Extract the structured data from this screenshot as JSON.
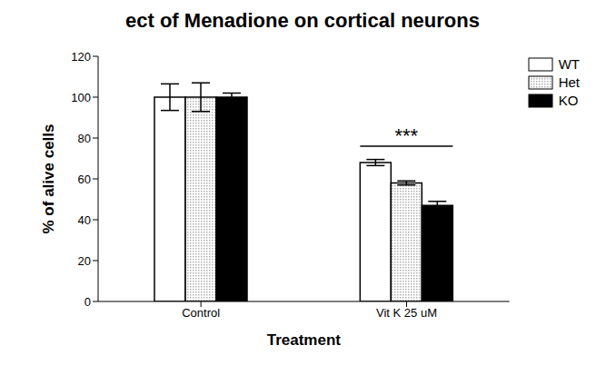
{
  "chart_data": {
    "type": "bar",
    "title": "ect of Menadione on cortical neurons",
    "x_label": "Treatment",
    "y_label": "% of alive cells",
    "categories": [
      "Control",
      "Vit K 25 uM"
    ],
    "series": [
      {
        "name": "WT",
        "color": "#ffffff",
        "values": [
          100,
          68
        ],
        "errors": [
          6.5,
          1.5
        ]
      },
      {
        "name": "Het",
        "color": "#b0b0b0",
        "values": [
          100,
          58
        ],
        "errors": [
          7,
          1
        ]
      },
      {
        "name": "KO",
        "color": "#000000",
        "values": [
          100,
          47
        ],
        "errors": [
          2,
          2
        ]
      }
    ],
    "ylim": [
      0,
      120
    ],
    "yticks": [
      0,
      20,
      40,
      60,
      80,
      100,
      120
    ],
    "grid": false,
    "legend": "top right",
    "annotations": [
      {
        "text": "***",
        "category": "Vit K 25 uM"
      }
    ]
  }
}
